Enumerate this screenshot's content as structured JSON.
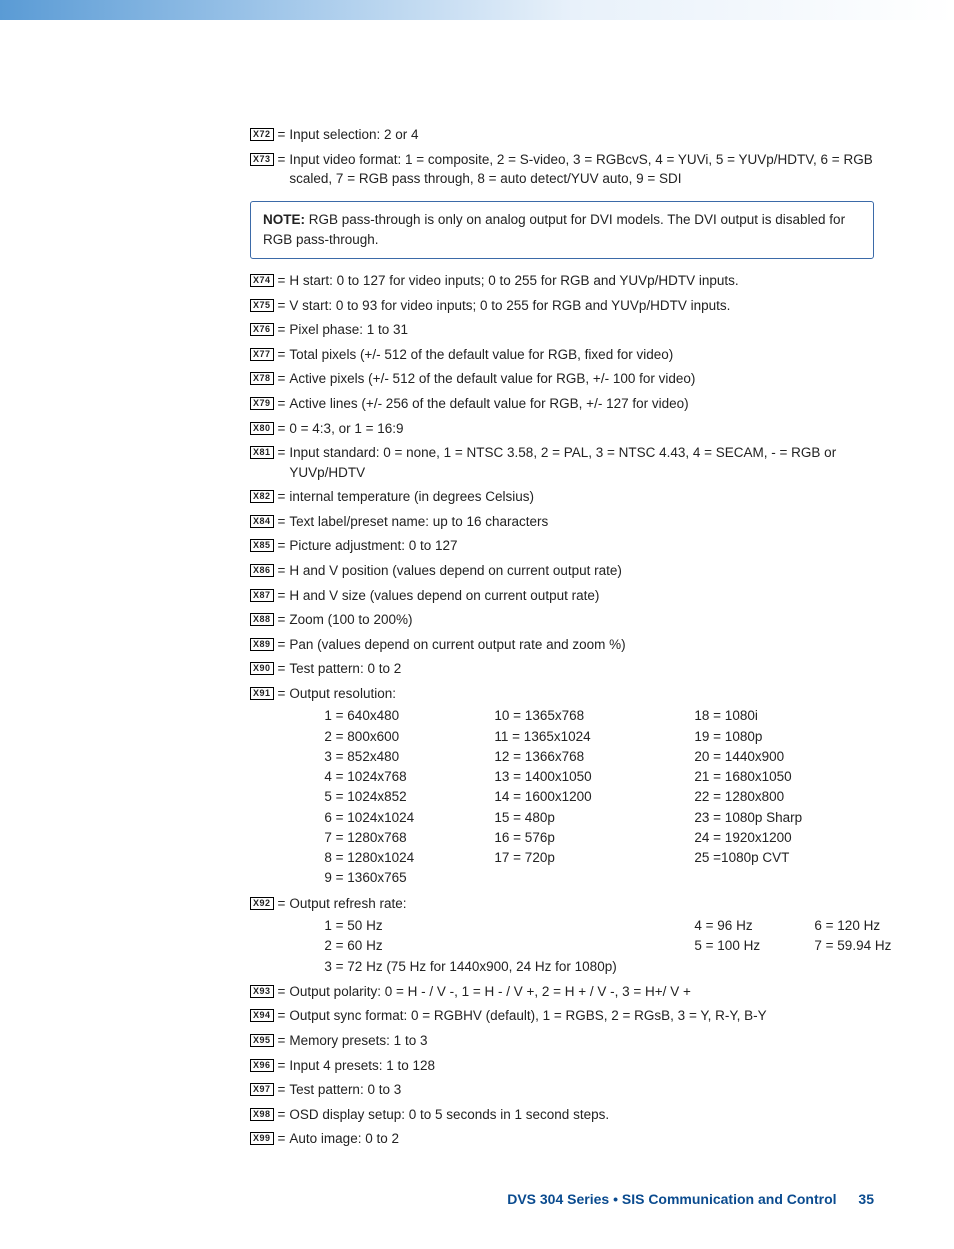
{
  "defs": {
    "x72": "Input selection: 2 or 4",
    "x73": "Input video format: 1 = composite, 2 = S-video, 3 = RGBcvS, 4 = YUVi, 5 = YUVp/HDTV, 6 = RGB scaled, 7 = RGB pass through, 8 = auto detect/YUV auto, 9 = SDI",
    "x74": "H start: 0 to 127 for video inputs; 0 to 255 for RGB and YUVp/HDTV inputs.",
    "x75": "V start: 0 to 93 for video inputs; 0 to 255 for RGB and YUVp/HDTV inputs.",
    "x76": "Pixel phase: 1 to 31",
    "x77": "Total pixels (+/- 512 of the default value for RGB, fixed for video)",
    "x78": "Active pixels (+/- 512 of the default value for RGB, +/- 100 for video)",
    "x79": "Active lines (+/- 256 of the default value for RGB, +/- 127 for video)",
    "x80": "0 = 4:3, or 1 = 16:9",
    "x81": "Input standard: 0 = none, 1 = NTSC 3.58, 2 = PAL, 3 = NTSC 4.43, 4 = SECAM, - = RGB  or YUVp/HDTV",
    "x82": "internal temperature (in degrees Celsius)",
    "x84": "Text label/preset name: up to 16 characters",
    "x85": "Picture adjustment:  0 to 127",
    "x86": "H and V position (values depend on current output rate)",
    "x87": "H and V size (values depend on current output rate)",
    "x88": "Zoom (100 to 200%)",
    "x89": "Pan (values depend on current output rate and zoom %)",
    "x90": "Test pattern: 0 to 2",
    "x91_head": "Output resolution:",
    "x92_head": "Output refresh rate:",
    "x93": "Output polarity: 0 = H - / V -, 1 = H - / V +, 2 = H + / V -, 3 = H+/ V +",
    "x94": "Output sync format: 0 = RGBHV (default), 1 = RGBS, 2 = RGsB, 3 = Y, R-Y, B-Y",
    "x95": "Memory presets: 1 to 3",
    "x96": "Input 4 presets: 1 to 128",
    "x97": "Test pattern: 0 to 3",
    "x98": "OSD display setup: 0 to 5 seconds in 1 second steps.",
    "x99": "Auto image: 0 to 2"
  },
  "note": {
    "label": "NOTE:",
    "text": "RGB pass-through is only on analog output for DVI models. The DVI output is disabled for RGB pass-through."
  },
  "resolutions": {
    "col1": [
      "1 = 640x480",
      "2 = 800x600",
      "3 = 852x480",
      "4 = 1024x768",
      "5 = 1024x852",
      "6 = 1024x1024",
      "7 = 1280x768",
      "8 = 1280x1024",
      "9 = 1360x765"
    ],
    "col2": [
      "10 = 1365x768",
      "11 = 1365x1024",
      "12 = 1366x768",
      "13 = 1400x1050",
      "14 = 1600x1200",
      "15 = 480p",
      "16 = 576p",
      "17 = 720p"
    ],
    "col3": [
      "18 = 1080i",
      "19 = 1080p",
      "20 = 1440x900",
      "21 = 1680x1050",
      "22 = 1280x800",
      "23 = 1080p Sharp",
      "24 = 1920x1200",
      "25 =1080p CVT"
    ]
  },
  "refresh": {
    "col1": [
      "1 = 50 Hz",
      "2 = 60 Hz",
      "3 = 72 Hz (75 Hz for 1440x900, 24 Hz for 1080p)"
    ],
    "col2": [
      "4 = 96 Hz",
      "5 = 100 Hz"
    ],
    "col3": [
      "6 = 120 Hz",
      "7 = 59.94 Hz"
    ]
  },
  "footer": {
    "title": "DVS 304 Series • SIS Communication and Control",
    "page": "35"
  }
}
